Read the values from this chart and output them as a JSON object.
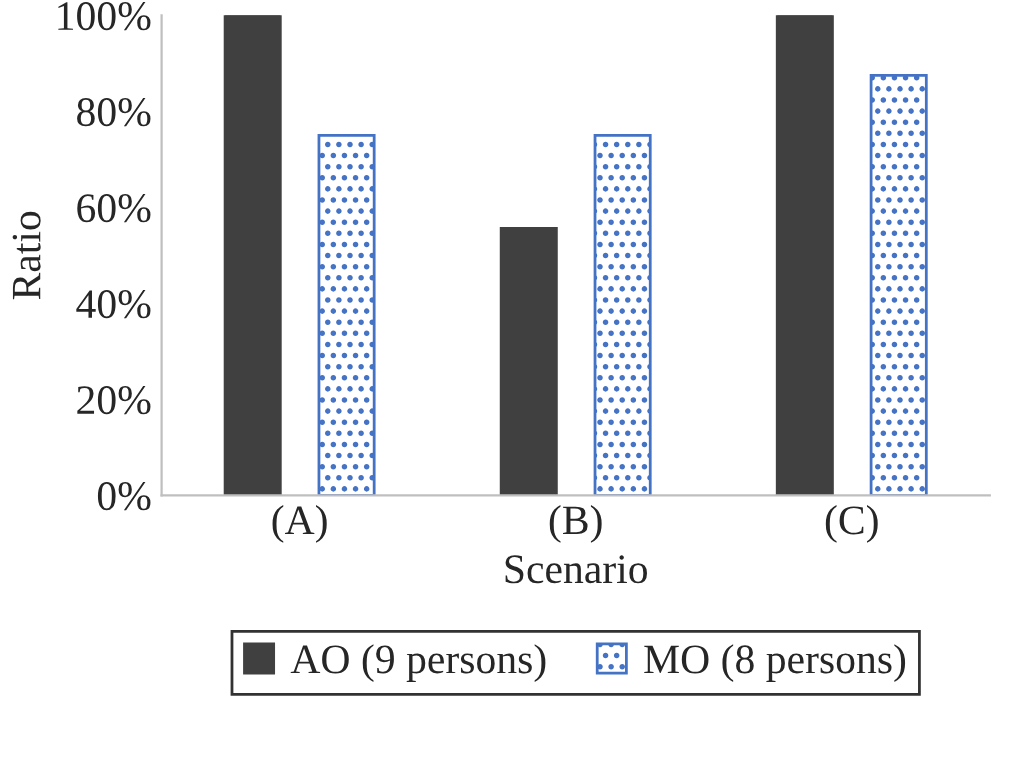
{
  "chart_data": {
    "type": "bar",
    "xlabel": "Scenario",
    "ylabel": "Ratio",
    "categories": [
      "(A)",
      "(B)",
      "(C)"
    ],
    "series": [
      {
        "name": "AO (9 persons)",
        "color": "#404040",
        "values": [
          100,
          55.6,
          100
        ]
      },
      {
        "name": "MO (8 persons)",
        "color": "#4472c4",
        "values": [
          75,
          75,
          87.5
        ]
      }
    ],
    "ylim": [
      0,
      100
    ],
    "yticks": [
      {
        "value": 0,
        "label": "0%"
      },
      {
        "value": 20,
        "label": "20%"
      },
      {
        "value": 40,
        "label": "40%"
      },
      {
        "value": 60,
        "label": "60%"
      },
      {
        "value": 80,
        "label": "80%"
      },
      {
        "value": 100,
        "label": "100%"
      }
    ],
    "grid": false,
    "legend": "bottom"
  }
}
